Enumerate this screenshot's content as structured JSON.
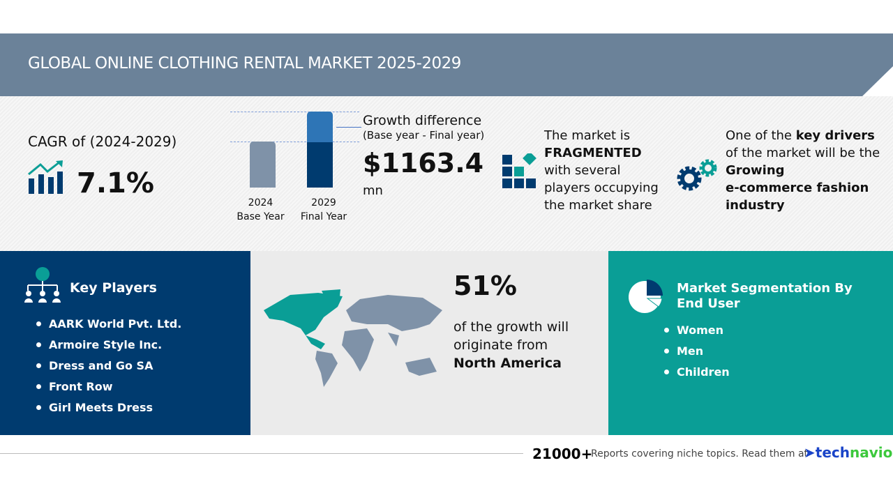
{
  "header": {
    "title": "GLOBAL ONLINE CLOTHING RENTAL MARKET 2025-2029"
  },
  "cagr": {
    "label": "CAGR of (2024-2029)",
    "value": "7.1%"
  },
  "growth": {
    "bars": [
      {
        "year": "2024",
        "label": "Base Year"
      },
      {
        "year": "2029",
        "label": "Final Year"
      }
    ],
    "title": "Growth difference",
    "subtitle": "(Base year - Final year)",
    "value": "$1163.4",
    "unit": "mn"
  },
  "market": {
    "line1": "The market is",
    "emph": "FRAGMENTED",
    "rest": [
      "with several",
      "players occupying",
      "the market share"
    ]
  },
  "drivers": {
    "pre": "One of the ",
    "bold": "key drivers",
    "line2": "of the market will be the",
    "d1": "Growing",
    "d2": "e-commerce fashion",
    "d3": "industry"
  },
  "key_players": {
    "title": "Key Players",
    "items": [
      "AARK World Pvt. Ltd.",
      "Armoire Style Inc.",
      "Dress and Go SA",
      "Front Row",
      "Girl Meets Dress"
    ]
  },
  "region": {
    "percent": "51%",
    "l1": "of the growth will",
    "l2": "originate from",
    "region": "North America"
  },
  "segmentation": {
    "title1": "Market Segmentation By",
    "title2": "End User",
    "items": [
      "Women",
      "Men",
      "Children"
    ]
  },
  "footer": {
    "count": "21000+",
    "text": "Reports covering niche topics. Read them at",
    "brand1": "tech",
    "brand2": "navio"
  },
  "colors": {
    "navy": "#003b6f",
    "teal": "#0a9e96",
    "slate": "#6b8299"
  }
}
